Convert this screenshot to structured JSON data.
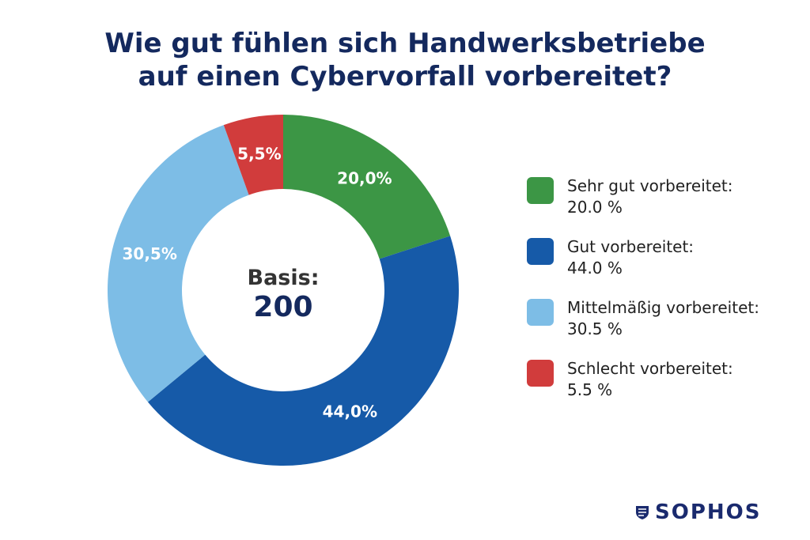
{
  "title": {
    "line1": "Wie gut fühlen sich Handwerksbetriebe",
    "line2": "auf einen Cybervorfall vorbereitet?"
  },
  "center": {
    "label": "Basis:",
    "value": "200"
  },
  "chart_data": {
    "type": "pie",
    "variant": "donut",
    "title": "Wie gut fühlen sich Handwerksbetriebe auf einen Cybervorfall vorbereitet?",
    "base": 200,
    "categories": [
      "Sehr gut vorbereitet:",
      "Gut vorbereitet:",
      "Mittelmäßig vorbereitet:",
      "Schlecht vorbereitet:"
    ],
    "values": [
      20.0,
      44.0,
      30.5,
      5.5
    ],
    "slice_labels": [
      "20,0%",
      "44,0%",
      "30,5%",
      "5,5%"
    ],
    "legend_values": [
      "20.0 %",
      "44.0 %",
      "30.5 %",
      "5.5 %"
    ],
    "colors": [
      "#3c9645",
      "#165aa8",
      "#7dbde6",
      "#d13c3c"
    ],
    "start_angle": "12 o'clock",
    "direction": "clockwise",
    "legend_position": "right"
  },
  "logo": {
    "text": "SOPHOS",
    "color": "#1a2a6e"
  }
}
